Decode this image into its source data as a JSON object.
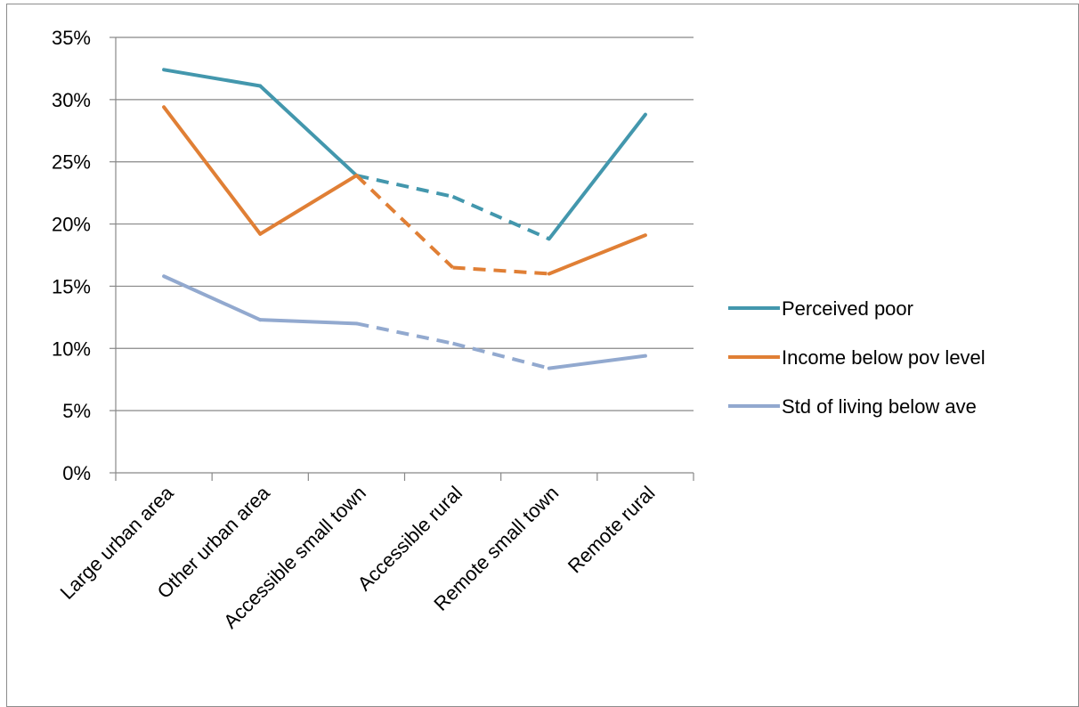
{
  "caption": "",
  "chart_data": {
    "type": "line",
    "categories": [
      "Large urban area",
      "Other urban area",
      "Accessible small town",
      "Accessible rural",
      "Remote small town",
      "Remote rural"
    ],
    "ylim": [
      0,
      0.35
    ],
    "yticks": [
      0,
      0.05,
      0.1,
      0.15,
      0.2,
      0.25,
      0.3,
      0.35
    ],
    "ytick_labels": [
      "0%",
      "5%",
      "10%",
      "15%",
      "20%",
      "25%",
      "30%",
      "35%"
    ],
    "grid": true,
    "legend_position": "right",
    "dashed_segments": [
      [
        2,
        4
      ]
    ],
    "series": [
      {
        "name": "Perceived poor",
        "color": "#4397ad",
        "values": [
          0.324,
          0.311,
          0.239,
          0.222,
          0.188,
          0.288
        ]
      },
      {
        "name": "Income below pov level",
        "color": "#e07f35",
        "values": [
          0.294,
          0.192,
          0.239,
          0.165,
          0.16,
          0.191
        ]
      },
      {
        "name": "Std of living below ave",
        "color": "#92a9cf",
        "values": [
          0.158,
          0.123,
          0.12,
          0.104,
          0.084,
          0.094
        ]
      }
    ]
  }
}
